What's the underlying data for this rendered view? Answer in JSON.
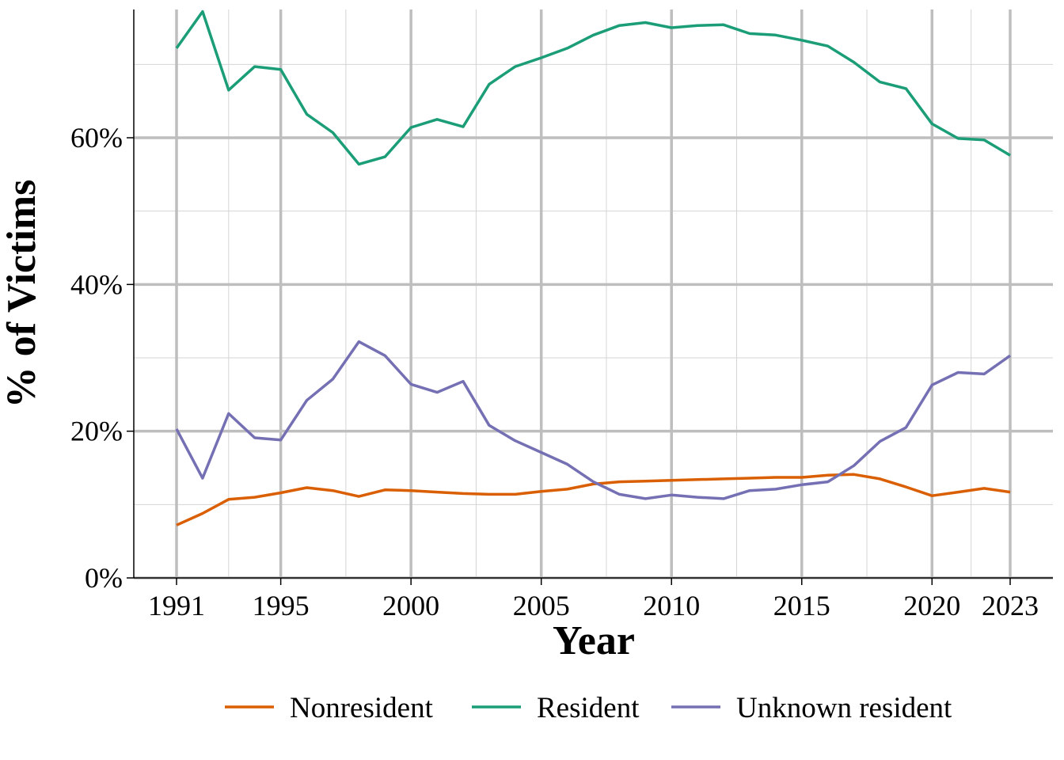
{
  "chart_data": {
    "type": "line",
    "title": "",
    "xlabel": "Year",
    "ylabel": "% of Victims",
    "xlim": [
      1991,
      2023
    ],
    "ylim": [
      0,
      0.77
    ],
    "x_ticks": [
      1991,
      1995,
      2000,
      2005,
      2010,
      2015,
      2020,
      2023
    ],
    "x_tick_labels": [
      "1991",
      "1995",
      "2000",
      "2005",
      "2010",
      "2015",
      "2020",
      "2023"
    ],
    "y_ticks": [
      0,
      0.2,
      0.4,
      0.6
    ],
    "y_tick_labels": [
      "0%",
      "20%",
      "40%",
      "60%"
    ],
    "grid": true,
    "legend_position": "bottom",
    "x": [
      1991,
      1992,
      1993,
      1994,
      1995,
      1996,
      1997,
      1998,
      1999,
      2000,
      2001,
      2002,
      2003,
      2004,
      2005,
      2006,
      2007,
      2008,
      2009,
      2010,
      2011,
      2012,
      2013,
      2014,
      2015,
      2016,
      2017,
      2018,
      2019,
      2020,
      2021,
      2022,
      2023
    ],
    "series": [
      {
        "name": "Nonresident",
        "color": "#D95F02",
        "values": [
          0.072,
          0.088,
          0.107,
          0.11,
          0.116,
          0.123,
          0.119,
          0.111,
          0.12,
          0.119,
          0.117,
          0.115,
          0.114,
          0.114,
          0.118,
          0.121,
          0.128,
          0.131,
          0.132,
          0.133,
          0.134,
          0.135,
          0.136,
          0.137,
          0.137,
          0.14,
          0.141,
          0.135,
          0.124,
          0.112,
          0.117,
          0.122,
          0.117
        ]
      },
      {
        "name": "Resident",
        "color": "#1B9E77",
        "values": [
          0.722,
          0.772,
          0.665,
          0.697,
          0.693,
          0.632,
          0.607,
          0.564,
          0.574,
          0.614,
          0.625,
          0.615,
          0.673,
          0.697,
          0.709,
          0.722,
          0.74,
          0.753,
          0.757,
          0.75,
          0.753,
          0.754,
          0.742,
          0.74,
          0.733,
          0.725,
          0.703,
          0.676,
          0.667,
          0.619,
          0.599,
          0.597,
          0.576
        ]
      },
      {
        "name": "Unknown resident",
        "color": "#7570B3",
        "values": [
          0.203,
          0.136,
          0.224,
          0.191,
          0.188,
          0.242,
          0.271,
          0.322,
          0.303,
          0.264,
          0.253,
          0.268,
          0.208,
          0.187,
          0.171,
          0.155,
          0.131,
          0.114,
          0.108,
          0.113,
          0.11,
          0.108,
          0.119,
          0.121,
          0.127,
          0.131,
          0.153,
          0.186,
          0.205,
          0.263,
          0.28,
          0.278,
          0.303
        ]
      }
    ]
  }
}
